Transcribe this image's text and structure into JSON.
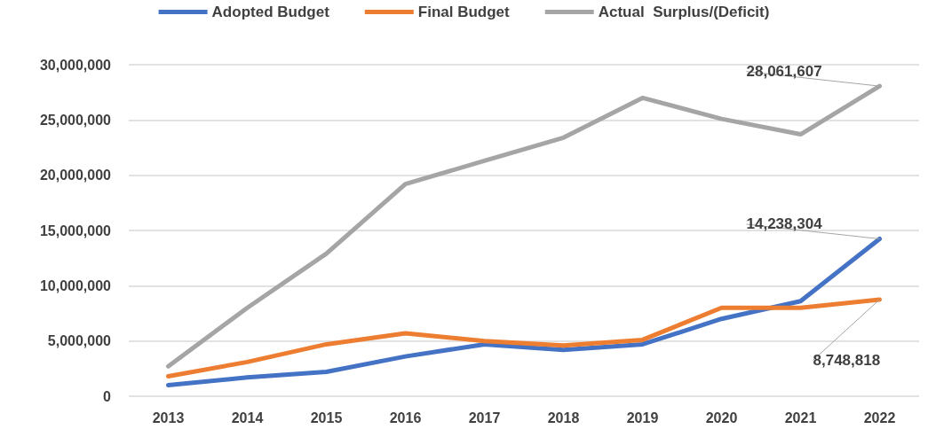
{
  "chart_data": {
    "type": "line",
    "categories": [
      "2013",
      "2014",
      "2015",
      "2016",
      "2017",
      "2018",
      "2019",
      "2020",
      "2021",
      "2022"
    ],
    "series": [
      {
        "name": "Adopted Budget",
        "color": "#4472c4",
        "values": [
          1000000,
          1700000,
          2200000,
          3600000,
          4700000,
          4200000,
          4700000,
          7000000,
          8600000,
          14238304
        ],
        "value_labels": [
          null,
          null,
          null,
          null,
          null,
          null,
          null,
          null,
          null,
          "14,238,304"
        ]
      },
      {
        "name": "Final Budget",
        "color": "#ed7d31",
        "values": [
          1800000,
          3100000,
          4700000,
          5700000,
          5000000,
          4600000,
          5100000,
          8000000,
          8000000,
          8748818
        ],
        "value_labels": [
          null,
          null,
          null,
          null,
          null,
          null,
          null,
          null,
          null,
          "8,748,818"
        ]
      },
      {
        "name": "Actual  Surplus/(Deficit)",
        "color": "#a5a5a5",
        "values": [
          2700000,
          8000000,
          12900000,
          19200000,
          21300000,
          23400000,
          27000000,
          25100000,
          23700000,
          28061607
        ],
        "value_labels": [
          null,
          null,
          null,
          null,
          null,
          null,
          null,
          null,
          null,
          "28,061,607"
        ]
      }
    ],
    "ylim": [
      0,
      30000000
    ],
    "yticks": [
      0,
      {
        "value": 5000000,
        "label": "5,000,000"
      },
      {
        "value": 10000000,
        "label": "10,000,000"
      },
      {
        "value": 15000000,
        "label": "15,000,000"
      },
      {
        "value": 20000000,
        "label": "20,000,000"
      },
      {
        "value": 25000000,
        "label": "25,000,000"
      },
      {
        "value": 30000000,
        "label": "30,000,000"
      }
    ],
    "grid": "y",
    "legend": "top",
    "marker": "none",
    "line_style": "solid"
  }
}
